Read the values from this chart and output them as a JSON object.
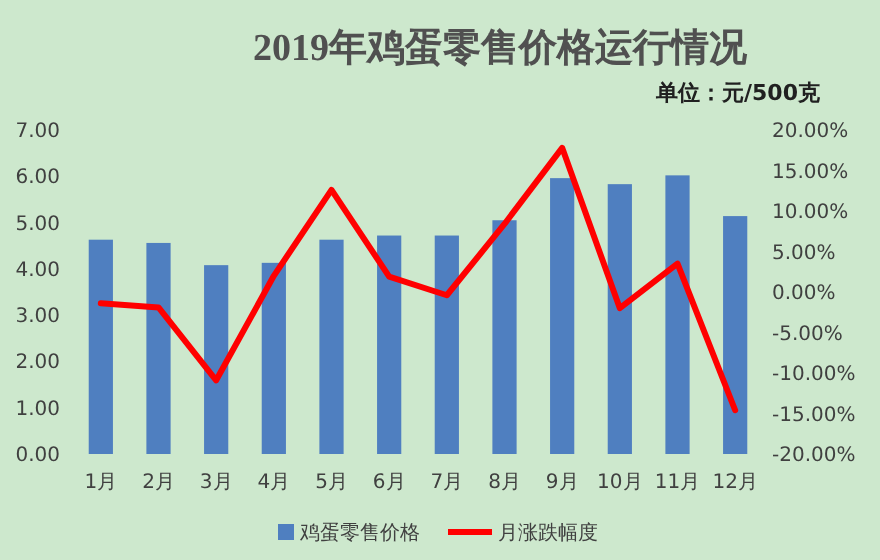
{
  "chart_data": {
    "type": "bar",
    "title": "2019年鸡蛋零售价格运行情况",
    "subtitle": "单位：元/500克",
    "categories": [
      "1月",
      "2月",
      "3月",
      "4月",
      "5月",
      "6月",
      "7月",
      "8月",
      "9月",
      "10月",
      "11月",
      "12月"
    ],
    "series": [
      {
        "name": "鸡蛋零售价格",
        "color": "#4f7fc0",
        "values": [
          4.63,
          4.56,
          4.08,
          4.13,
          4.63,
          4.72,
          4.72,
          5.05,
          5.96,
          5.83,
          6.02,
          5.14
        ]
      },
      {
        "name": "月涨跌幅度",
        "type": "line",
        "axis": "y2",
        "color": "#ff0000",
        "values": [
          -1.4,
          -1.9,
          -10.9,
          2.0,
          12.6,
          1.9,
          -0.4,
          8.4,
          17.8,
          -2.0,
          3.5,
          -14.6
        ]
      }
    ],
    "ylim": [
      0,
      7
    ],
    "yticks": [
      {
        "value": 0,
        "label": "0.00"
      },
      {
        "value": 1,
        "label": "1.00"
      },
      {
        "value": 2,
        "label": "2.00"
      },
      {
        "value": 3,
        "label": "3.00"
      },
      {
        "value": 4,
        "label": "4.00"
      },
      {
        "value": 5,
        "label": "5.00"
      },
      {
        "value": 6,
        "label": "6.00"
      },
      {
        "value": 7,
        "label": "7.00"
      }
    ],
    "y2lim": [
      -20,
      20
    ],
    "y2ticks": [
      {
        "value": -20,
        "label": "-20.00%"
      },
      {
        "value": -15,
        "label": "-15.00%"
      },
      {
        "value": -10,
        "label": "-10.00%"
      },
      {
        "value": -5,
        "label": "-5.00%"
      },
      {
        "value": 0,
        "label": "0.00%"
      },
      {
        "value": 5,
        "label": "5.00%"
      },
      {
        "value": 10,
        "label": "10.00%"
      },
      {
        "value": 15,
        "label": "15.00%"
      },
      {
        "value": 20,
        "label": "20.00%"
      }
    ],
    "legend": "bottom",
    "marker": "none",
    "line_style": "solid",
    "grid": false
  }
}
